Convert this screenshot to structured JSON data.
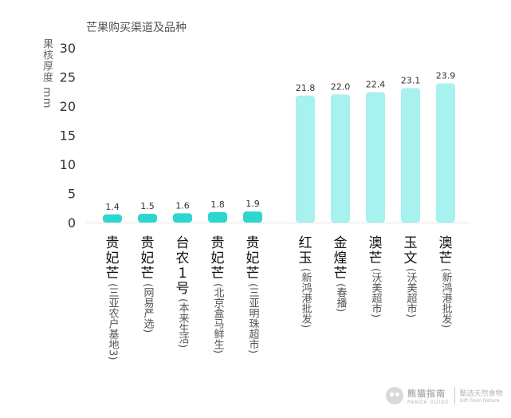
{
  "chart_data": {
    "type": "bar",
    "title": "芒果购买渠道及品种",
    "ylabel": "果核厚度 mm",
    "ylim": [
      0,
      30
    ],
    "yticks": [
      0,
      5,
      10,
      15,
      20,
      25,
      30
    ],
    "grid": false,
    "categories": [
      {
        "name": "贵妃芒",
        "channel": "(三亚农户基地3)",
        "value": 1.4,
        "group": "low"
      },
      {
        "name": "贵妃芒",
        "channel": "(网易严选)",
        "value": 1.5,
        "group": "low"
      },
      {
        "name": "台农1号",
        "channel": "(本来生活)",
        "value": 1.6,
        "group": "low"
      },
      {
        "name": "贵妃芒",
        "channel": "(北京盒马鲜生)",
        "value": 1.8,
        "group": "low"
      },
      {
        "name": "贵妃芒",
        "channel": "(三亚明珠超市)",
        "value": 1.9,
        "group": "low"
      },
      {
        "name": "红玉",
        "channel": "(新鸿港批发)",
        "value": 21.8,
        "group": "high"
      },
      {
        "name": "金煌芒",
        "channel": "(春播)",
        "value": 22.0,
        "group": "high"
      },
      {
        "name": "澳芒",
        "channel": "(沃美超市)",
        "value": 22.4,
        "group": "high"
      },
      {
        "name": "玉文",
        "channel": "(沃美超市)",
        "value": 23.1,
        "group": "high"
      },
      {
        "name": "澳芒",
        "channel": "(新鸿港批发)",
        "value": 23.9,
        "group": "high"
      }
    ],
    "colors": {
      "low": "#2fd6d0",
      "high": "#a7f1ef"
    },
    "value_labels": [
      "1.4",
      "1.5",
      "1.6",
      "1.8",
      "1.9",
      "21.8",
      "22.0",
      "22.4",
      "23.1",
      "23.9"
    ]
  },
  "branding": {
    "logo_cn": "熊猫指南",
    "logo_en": "PANDA GUIDE",
    "slogan_cn": "甄选天然食物",
    "slogan_en": "Gift From Nature"
  }
}
